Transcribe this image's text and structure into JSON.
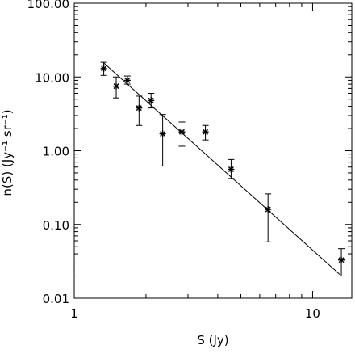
{
  "chart_data": {
    "type": "scatter",
    "title": "",
    "xlabel": "S (Jy)",
    "ylabel": "n(S) (Jy⁻¹ sr⁻¹)",
    "xscale": "log",
    "yscale": "log",
    "xlim": [
      1,
      14.6
    ],
    "ylim": [
      0.01,
      100
    ],
    "grid": false,
    "x_ticks": [
      {
        "value": 1,
        "label": "1"
      },
      {
        "value": 10,
        "label": "10"
      }
    ],
    "y_ticks": [
      {
        "value": 0.01,
        "label": "0.01"
      },
      {
        "value": 0.1,
        "label": "0.10"
      },
      {
        "value": 1,
        "label": "1.00"
      },
      {
        "value": 10,
        "label": "10.00"
      },
      {
        "value": 100,
        "label": "100.00"
      }
    ],
    "series": [
      {
        "type": "scatter",
        "marker": "asterisk",
        "points": [
          {
            "x": 1.33,
            "y": 13.0,
            "yerr_low": 10.5,
            "yerr_high": 15.8
          },
          {
            "x": 1.5,
            "y": 7.5,
            "yerr_low": 5.2,
            "yerr_high": 10.0
          },
          {
            "x": 1.67,
            "y": 9.0,
            "yerr_low": 8.0,
            "yerr_high": 10.3
          },
          {
            "x": 1.87,
            "y": 3.8,
            "yerr_low": 2.2,
            "yerr_high": 5.5
          },
          {
            "x": 2.1,
            "y": 4.8,
            "yerr_low": 3.8,
            "yerr_high": 6.0
          },
          {
            "x": 2.35,
            "y": 1.7,
            "yerr_low": 0.62,
            "yerr_high": 3.1
          },
          {
            "x": 2.83,
            "y": 1.8,
            "yerr_low": 1.15,
            "yerr_high": 2.45
          },
          {
            "x": 3.55,
            "y": 1.8,
            "yerr_low": 1.4,
            "yerr_high": 2.2
          },
          {
            "x": 4.55,
            "y": 0.56,
            "yerr_low": 0.42,
            "yerr_high": 0.76
          },
          {
            "x": 6.5,
            "y": 0.16,
            "yerr_low": 0.058,
            "yerr_high": 0.26
          },
          {
            "x": 13.2,
            "y": 0.033,
            "yerr_low": 0.02,
            "yerr_high": 0.047
          }
        ]
      },
      {
        "type": "line",
        "points": [
          {
            "x": 1.33,
            "y": 15.5
          },
          {
            "x": 13.0,
            "y": 0.021
          }
        ]
      }
    ]
  }
}
